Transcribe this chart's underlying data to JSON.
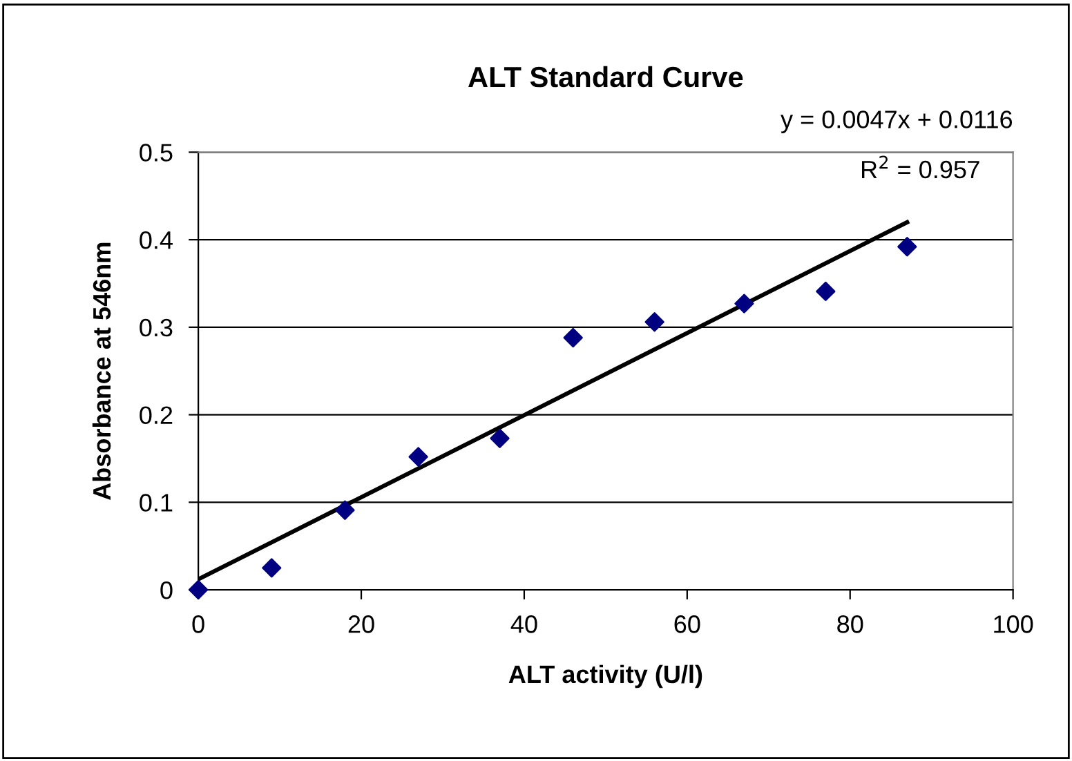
{
  "chart_data": {
    "type": "scatter",
    "title": "ALT Standard Curve",
    "xlabel": "ALT activity (U/l)",
    "ylabel": "Absorbance at 546nm",
    "x": [
      0,
      9,
      18,
      27,
      37,
      46,
      56,
      67,
      77,
      87
    ],
    "series": [
      {
        "color": "#000080",
        "marker": "diamond",
        "values": [
          0,
          0.025,
          0.091,
          0.152,
          0.173,
          0.288,
          0.306,
          0.327,
          0.341,
          0.392
        ]
      },
      {
        "type": "line",
        "color": "#000000",
        "x": [
          0,
          87
        ],
        "values": [
          0.012,
          0.42
        ]
      }
    ],
    "annotations": [
      "y = 0.0047x + 0.0116",
      "R$^{2}$ = 0.957"
    ],
    "xlim": [
      0,
      100
    ],
    "ylim": [
      0,
      0.5
    ],
    "xticks": [
      0,
      20,
      40,
      60,
      80,
      100
    ],
    "yticks": [
      0,
      0.1,
      0.2,
      0.3,
      0.4,
      0.5
    ],
    "grid": "y",
    "legend": false
  }
}
